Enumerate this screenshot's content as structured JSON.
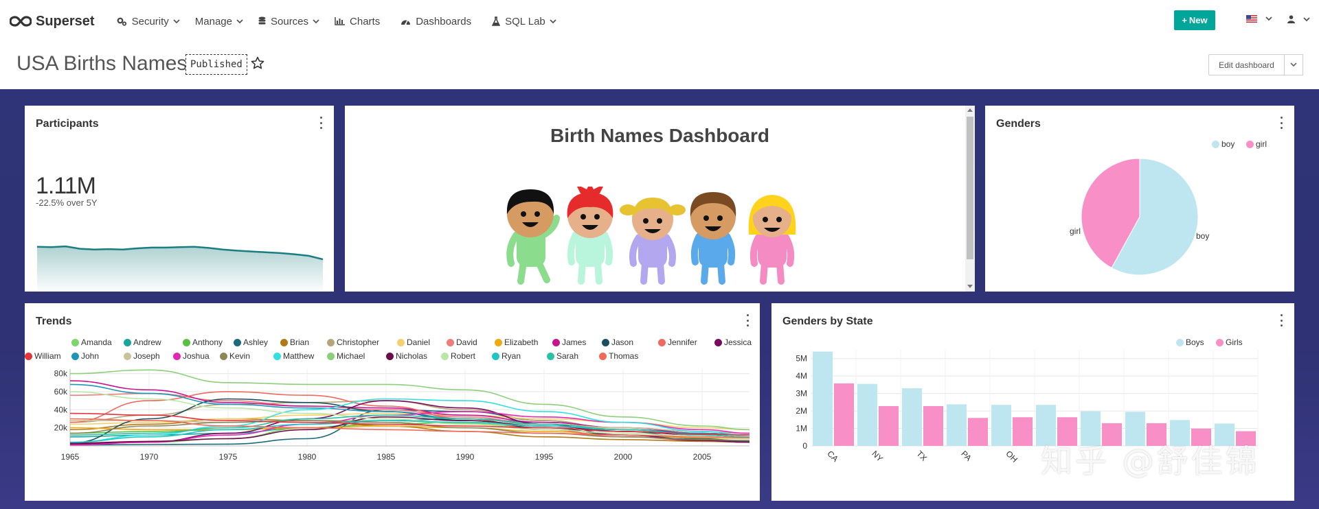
{
  "nav": {
    "brand": "Superset",
    "items": [
      {
        "label": "Security",
        "icon": "gears-icon",
        "has_caret": true
      },
      {
        "label": "Manage",
        "icon": "",
        "has_caret": true
      },
      {
        "label": "Sources",
        "icon": "database-icon",
        "has_caret": true
      },
      {
        "label": "Charts",
        "icon": "bar-chart-icon",
        "has_caret": false
      },
      {
        "label": "Dashboards",
        "icon": "dashboard-icon",
        "has_caret": false
      },
      {
        "label": "SQL Lab",
        "icon": "flask-icon",
        "has_caret": true
      }
    ],
    "new_button": "New",
    "accent": "#00a699"
  },
  "header": {
    "title": "USA Births Names",
    "status": "Published",
    "edit_button": "Edit dashboard"
  },
  "participants": {
    "title": "Participants",
    "value": "1.11M",
    "subtext": "-22.5% over 5Y",
    "line_color": "#1a7d80"
  },
  "markdown": {
    "title": "Birth Names Dashboard"
  },
  "genders": {
    "title": "Genders",
    "legend": [
      {
        "label": "boy",
        "color": "#bde6f0"
      },
      {
        "label": "girl",
        "color": "#f88fc7"
      }
    ],
    "labels": {
      "boy": "boy",
      "girl": "girl"
    }
  },
  "trends": {
    "title": "Trends",
    "legend": [
      {
        "label": "Amanda",
        "color": "#7fd46b"
      },
      {
        "label": "Andrew",
        "color": "#1aa59a"
      },
      {
        "label": "Anthony",
        "color": "#5ac043"
      },
      {
        "label": "Ashley",
        "color": "#1c6a7a"
      },
      {
        "label": "Brian",
        "color": "#b07a16"
      },
      {
        "label": "Christopher",
        "color": "#b7a67a"
      },
      {
        "label": "Daniel",
        "color": "#f6cf6e"
      },
      {
        "label": "David",
        "color": "#f17c7c"
      },
      {
        "label": "Elizabeth",
        "color": "#f1a912"
      },
      {
        "label": "James",
        "color": "#c5158f"
      },
      {
        "label": "Jason",
        "color": "#1b4f5f"
      },
      {
        "label": "Jennifer",
        "color": "#ee6a5f"
      },
      {
        "label": "Jessica",
        "color": "#7a0a5d"
      },
      {
        "label": "John",
        "color": "#1e95b6"
      },
      {
        "label": "Joseph",
        "color": "#c9c29a"
      },
      {
        "label": "Joshua",
        "color": "#e427b3"
      },
      {
        "label": "Kevin",
        "color": "#8b8759"
      },
      {
        "label": "Matthew",
        "color": "#33e0e0"
      },
      {
        "label": "Michael",
        "color": "#8ccf7a"
      },
      {
        "label": "Nicholas",
        "color": "#6b0d47"
      },
      {
        "label": "Robert",
        "color": "#b9e8a6"
      },
      {
        "label": "Ryan",
        "color": "#1fc6c4"
      },
      {
        "label": "Sarah",
        "color": "#2ac2a6"
      },
      {
        "label": "Thomas",
        "color": "#f06a5a"
      },
      {
        "label": "William",
        "color": "#e2353d"
      }
    ],
    "y_ticks": [
      "80k",
      "60k",
      "40k",
      "20k"
    ],
    "x_ticks": [
      "1965",
      "1970",
      "1975",
      "1980",
      "1985",
      "1990",
      "1995",
      "2000",
      "2005"
    ]
  },
  "genders_by_state": {
    "title": "Genders by State",
    "legend": [
      {
        "label": "Boys",
        "color": "#bde6f0"
      },
      {
        "label": "Girls",
        "color": "#f88fc7"
      }
    ],
    "y_ticks": [
      "5M",
      "4M",
      "3M",
      "2M",
      "1M",
      "0"
    ]
  },
  "watermark": "知乎 @舒佳锦",
  "chart_data": [
    {
      "type": "area",
      "title": "Participants",
      "series": [
        {
          "values": [
            1.43,
            1.42,
            1.44,
            1.38,
            1.36,
            1.37,
            1.36,
            1.39,
            1.41,
            1.41,
            1.42,
            1.43,
            1.4,
            1.36,
            1.33,
            1.31,
            1.29,
            1.27,
            1.24,
            1.2,
            1.11
          ]
        }
      ]
    },
    {
      "type": "pie",
      "title": "Genders",
      "categories": [
        "boy",
        "girl"
      ],
      "values": [
        58,
        42
      ]
    },
    {
      "type": "line",
      "title": "Trends",
      "x": [
        1965,
        1970,
        1975,
        1980,
        1985,
        1990,
        1995,
        2000,
        2005,
        2008
      ],
      "ylim": [
        0,
        85000
      ],
      "series": [
        {
          "name": "Amanda",
          "values": [
            3000,
            4000,
            8000,
            20000,
            28000,
            25000,
            20000,
            12000,
            6000,
            4000
          ]
        },
        {
          "name": "Andrew",
          "values": [
            10000,
            12000,
            14000,
            20000,
            28000,
            30000,
            26000,
            20000,
            14000,
            12000
          ]
        },
        {
          "name": "Anthony",
          "values": [
            14000,
            16000,
            18000,
            20000,
            24000,
            26000,
            24000,
            20000,
            16000,
            14000
          ]
        },
        {
          "name": "Ashley",
          "values": [
            1000,
            1500,
            2000,
            8000,
            40000,
            38000,
            28000,
            16000,
            8000,
            5000
          ]
        },
        {
          "name": "Brian",
          "values": [
            18000,
            24000,
            30000,
            28000,
            22000,
            16000,
            10000,
            7000,
            5000,
            4000
          ]
        },
        {
          "name": "Christopher",
          "values": [
            26000,
            34000,
            46000,
            48000,
            50000,
            40000,
            28000,
            18000,
            12000,
            10000
          ]
        },
        {
          "name": "Daniel",
          "values": [
            24000,
            26000,
            30000,
            34000,
            36000,
            34000,
            30000,
            26000,
            20000,
            18000
          ]
        },
        {
          "name": "David",
          "values": [
            56000,
            58000,
            50000,
            44000,
            40000,
            32000,
            24000,
            18000,
            14000,
            12000
          ]
        },
        {
          "name": "Elizabeth",
          "values": [
            20000,
            18000,
            18000,
            20000,
            22000,
            20000,
            16000,
            12000,
            9000,
            8000
          ]
        },
        {
          "name": "James",
          "values": [
            72000,
            62000,
            48000,
            44000,
            42000,
            34000,
            26000,
            20000,
            14000,
            12000
          ]
        },
        {
          "name": "Jason",
          "values": [
            3000,
            30000,
            52000,
            48000,
            38000,
            28000,
            20000,
            12000,
            7000,
            5000
          ]
        },
        {
          "name": "Jennifer",
          "values": [
            26000,
            50000,
            60000,
            56000,
            44000,
            30000,
            18000,
            10000,
            6000,
            4000
          ]
        },
        {
          "name": "Jessica",
          "values": [
            2000,
            4000,
            14000,
            30000,
            50000,
            42000,
            24000,
            12000,
            6000,
            4000
          ]
        },
        {
          "name": "John",
          "values": [
            68000,
            58000,
            46000,
            42000,
            38000,
            30000,
            24000,
            18000,
            14000,
            12000
          ]
        },
        {
          "name": "Joseph",
          "values": [
            28000,
            28000,
            26000,
            28000,
            28000,
            26000,
            24000,
            20000,
            16000,
            14000
          ]
        },
        {
          "name": "Joshua",
          "values": [
            1000,
            4000,
            12000,
            24000,
            34000,
            38000,
            32000,
            26000,
            18000,
            14000
          ]
        },
        {
          "name": "Kevin",
          "values": [
            14000,
            22000,
            26000,
            28000,
            26000,
            20000,
            14000,
            10000,
            7000,
            6000
          ]
        },
        {
          "name": "Matthew",
          "values": [
            4000,
            12000,
            22000,
            40000,
            52000,
            50000,
            38000,
            26000,
            16000,
            12000
          ]
        },
        {
          "name": "Michael",
          "values": [
            80000,
            84000,
            70000,
            68000,
            68000,
            62000,
            46000,
            32000,
            22000,
            18000
          ]
        },
        {
          "name": "Nicholas",
          "values": [
            3000,
            5000,
            8000,
            18000,
            32000,
            28000,
            22000,
            16000,
            12000,
            10000
          ]
        },
        {
          "name": "Robert",
          "values": [
            60000,
            52000,
            42000,
            36000,
            30000,
            24000,
            18000,
            14000,
            10000,
            8000
          ]
        },
        {
          "name": "Ryan",
          "values": [
            4000,
            10000,
            18000,
            24000,
            28000,
            26000,
            22000,
            18000,
            12000,
            10000
          ]
        },
        {
          "name": "Sarah",
          "values": [
            12000,
            14000,
            20000,
            30000,
            34000,
            30000,
            24000,
            18000,
            12000,
            10000
          ]
        },
        {
          "name": "Thomas",
          "values": [
            30000,
            28000,
            22000,
            20000,
            18000,
            16000,
            14000,
            12000,
            10000,
            9000
          ]
        },
        {
          "name": "William",
          "values": [
            36000,
            34000,
            28000,
            26000,
            24000,
            22000,
            20000,
            16000,
            13000,
            12000
          ]
        }
      ]
    },
    {
      "type": "bar",
      "title": "Genders by State",
      "categories": [
        "CA",
        "NY",
        "TX",
        "PA",
        "OH",
        "",
        "",
        "",
        "",
        ""
      ],
      "ylim": [
        0,
        5500000
      ],
      "series": [
        {
          "name": "Boys",
          "values": [
            5400000,
            3550000,
            3300000,
            2380000,
            2350000,
            2350000,
            1980000,
            1950000,
            1480000,
            1280000
          ]
        },
        {
          "name": "Girls",
          "values": [
            3580000,
            2280000,
            2280000,
            1600000,
            1640000,
            1640000,
            1300000,
            1300000,
            990000,
            840000
          ]
        }
      ]
    }
  ]
}
